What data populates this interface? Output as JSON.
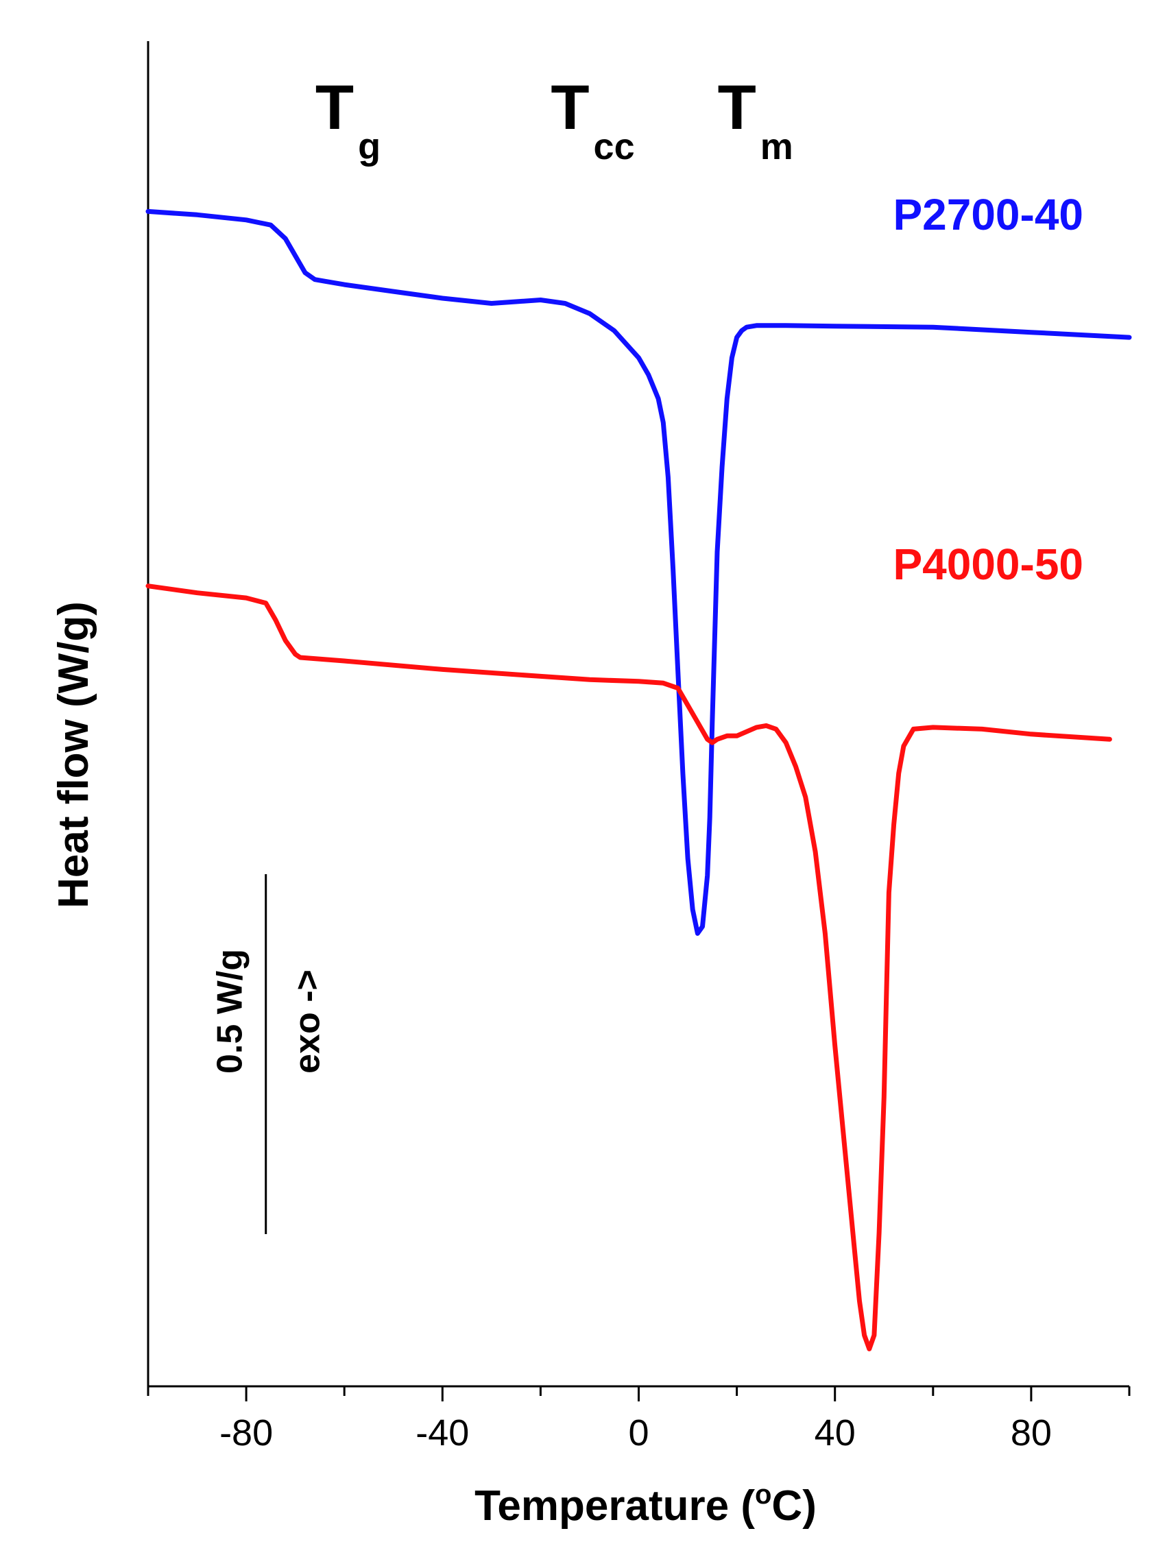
{
  "chart_data": {
    "type": "line",
    "xlabel": "Temperature (°C)",
    "xlabel_parts": {
      "pre": "Temperature (",
      "sup": "o",
      "post": "C)"
    },
    "ylabel": "Heat flow (W/g)",
    "xlim": [
      -100,
      100
    ],
    "ylim": [
      -3.45,
      0.5
    ],
    "x_ticks": [
      -80,
      -40,
      0,
      40,
      80
    ],
    "x_minor_ticks": [
      -100,
      -60,
      -20,
      20,
      60,
      100
    ],
    "grid": false,
    "y_ticks_shown": false,
    "annotations": [
      {
        "main": "T",
        "sub": "g",
        "x": -62
      },
      {
        "main": "T",
        "sub": "cc",
        "x": -14
      },
      {
        "main": "T",
        "sub": "m",
        "x": 20
      }
    ],
    "scale_bar": {
      "label": "0.5 W/g",
      "direction": "exo ->",
      "length": 0.5,
      "x": -76
    },
    "series": [
      {
        "name": "P2700-40",
        "color": "#1010ff",
        "x": [
          -100,
          -90,
          -80,
          -75,
          -72,
          -70,
          -68,
          -66,
          -64,
          -60,
          -50,
          -40,
          -30,
          -25,
          -20,
          -15,
          -10,
          -5,
          0,
          2,
          4,
          5,
          6,
          7,
          8,
          9,
          10,
          11,
          12,
          13,
          14,
          14.5,
          15,
          15.5,
          16,
          17,
          18,
          19,
          20,
          21,
          22,
          24,
          30,
          40,
          60,
          80,
          100
        ],
        "y": [
          0.0,
          -0.01,
          -0.025,
          -0.04,
          -0.08,
          -0.13,
          -0.18,
          -0.2,
          -0.205,
          -0.215,
          -0.235,
          -0.255,
          -0.27,
          -0.265,
          -0.26,
          -0.27,
          -0.3,
          -0.35,
          -0.43,
          -0.48,
          -0.55,
          -0.62,
          -0.78,
          -1.05,
          -1.35,
          -1.65,
          -1.9,
          -2.05,
          -2.12,
          -2.1,
          -1.95,
          -1.78,
          -1.5,
          -1.25,
          -1.0,
          -0.75,
          -0.55,
          -0.43,
          -0.37,
          -0.35,
          -0.34,
          -0.335,
          -0.335,
          -0.337,
          -0.34,
          -0.355,
          -0.37
        ]
      },
      {
        "name": "P4000-50",
        "color": "#ff1010",
        "x": [
          -100,
          -90,
          -80,
          -76,
          -74,
          -72,
          -70,
          -69,
          -60,
          -40,
          -20,
          -10,
          0,
          5,
          8,
          10,
          12,
          14,
          15,
          16,
          18,
          20,
          24,
          26,
          28,
          30,
          32,
          34,
          36,
          38,
          40,
          42,
          44,
          45,
          46,
          47,
          48,
          49,
          50,
          50.5,
          51,
          52,
          53,
          54,
          56,
          60,
          70,
          80,
          96
        ],
        "y": [
          -1.1,
          -1.12,
          -1.135,
          -1.15,
          -1.2,
          -1.26,
          -1.3,
          -1.31,
          -1.32,
          -1.345,
          -1.365,
          -1.375,
          -1.38,
          -1.385,
          -1.4,
          -1.45,
          -1.5,
          -1.55,
          -1.56,
          -1.55,
          -1.54,
          -1.54,
          -1.515,
          -1.51,
          -1.52,
          -1.56,
          -1.63,
          -1.72,
          -1.88,
          -2.12,
          -2.45,
          -2.75,
          -3.05,
          -3.2,
          -3.3,
          -3.34,
          -3.3,
          -3.0,
          -2.6,
          -2.3,
          -2.0,
          -1.8,
          -1.65,
          -1.57,
          -1.52,
          -1.515,
          -1.52,
          -1.535,
          -1.55
        ]
      }
    ]
  }
}
